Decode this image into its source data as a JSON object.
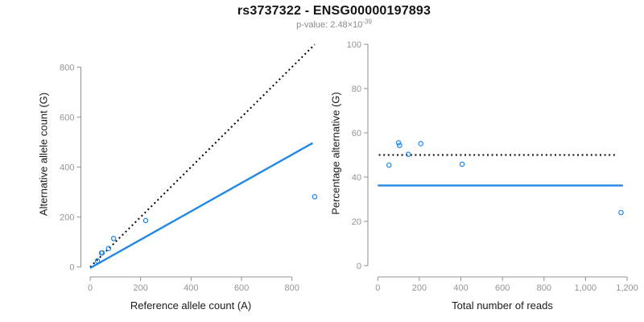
{
  "header": {
    "title": "rs3737322 - ENSG00000197893",
    "subtitle_prefix": "p-value: 2.48×10",
    "subtitle_exponent": "-39"
  },
  "colors": {
    "accent_blue": "#2288e8",
    "line_black": "#000000",
    "axis_gray": "#919191",
    "text_gray": "#8a8a8a"
  },
  "chart_data": [
    {
      "type": "scatter",
      "name": "allele-counts-scatter",
      "xlabel": "Reference allele count (A)",
      "ylabel": "Alternative allele count (G)",
      "xticks": [
        0,
        200,
        400,
        600,
        800
      ],
      "xtick_labels": [
        "0",
        "200",
        "400",
        "600",
        "800"
      ],
      "yticks": [
        0,
        200,
        400,
        600,
        800
      ],
      "ytick_labels": [
        "0",
        "200",
        "400",
        "600",
        "800"
      ],
      "xlim": [
        0,
        890
      ],
      "ylim": [
        0,
        890
      ],
      "grid": false,
      "points": [
        [
          29,
          25
        ],
        [
          45,
          56
        ],
        [
          48,
          57
        ],
        [
          73,
          74
        ],
        [
          93,
          114
        ],
        [
          220,
          186
        ],
        [
          890,
          281
        ]
      ],
      "lines": [
        {
          "name": "identity-line",
          "style": "dotted",
          "color": "black",
          "slope": 1,
          "intercept": 0,
          "x_range": [
            0,
            890
          ]
        },
        {
          "name": "fit-line",
          "style": "solid",
          "color": "blue",
          "slope": 0.567,
          "intercept": -4,
          "x_range": [
            0,
            882
          ]
        }
      ]
    },
    {
      "type": "scatter",
      "name": "percentage-alternative-scatter",
      "xlabel": "Total number of reads",
      "ylabel": "Percentage alternative (G)",
      "xticks": [
        0,
        200,
        400,
        600,
        800,
        1000,
        1200
      ],
      "xtick_labels": [
        "0",
        "200",
        "400",
        "600",
        "800",
        "1,000",
        "1,200"
      ],
      "yticks": [
        0,
        20,
        40,
        60,
        80,
        100
      ],
      "ytick_labels": [
        "0",
        "20",
        "40",
        "60",
        "80",
        "100"
      ],
      "xlim": [
        0,
        1200
      ],
      "ylim": [
        0,
        100
      ],
      "grid": false,
      "points": [
        [
          54,
          45.4
        ],
        [
          100,
          55.5
        ],
        [
          105,
          54.3
        ],
        [
          147,
          50.3
        ],
        [
          207,
          55.1
        ],
        [
          406,
          45.8
        ],
        [
          1171,
          24
        ]
      ],
      "lines": [
        {
          "name": "expected-50pct-line",
          "style": "dotted",
          "color": "black",
          "slope": 0,
          "intercept": 50,
          "x_range": [
            5,
            1155
          ]
        },
        {
          "name": "fit-line",
          "style": "solid",
          "color": "blue",
          "slope": 0,
          "intercept": 36.2,
          "x_range": [
            0,
            1180
          ]
        }
      ]
    }
  ]
}
